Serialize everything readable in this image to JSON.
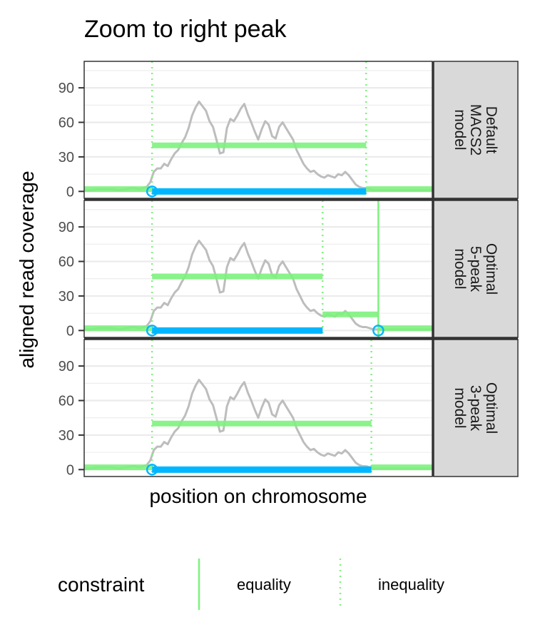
{
  "chart_data": {
    "type": "line",
    "title": "Zoom to right peak",
    "xlabel": "position on chromosome",
    "ylabel": "aligned read coverage",
    "x_ticks_shown": false,
    "x_range": [
      0,
      100
    ],
    "ylim": [
      -6,
      113
    ],
    "y_ticks": [
      0,
      30,
      60,
      90
    ],
    "grid": true,
    "legend_placement": "bottom",
    "colors": {
      "coverage": "#bdbdbd",
      "segment": "#7ef27e",
      "peak": "#00b7ff",
      "strip_bg": "#d9d9d9",
      "panel_border": "#333333",
      "grid": "#ebebeb"
    },
    "coverage": {
      "x": [
        0,
        2,
        4,
        6,
        8,
        10,
        12,
        14,
        16,
        18,
        19,
        20,
        21,
        22,
        23,
        24,
        25,
        26,
        27,
        28,
        29,
        30,
        31,
        32,
        33,
        34,
        35,
        36,
        37,
        38,
        39,
        40,
        41,
        42,
        43,
        44,
        45,
        46,
        47,
        48,
        49,
        50,
        51,
        52,
        53,
        54,
        55,
        56,
        57,
        58,
        59,
        60,
        61,
        62,
        63,
        64,
        65,
        66,
        67,
        68,
        69,
        70,
        71,
        72,
        73,
        74,
        75,
        76,
        77,
        78,
        79,
        80,
        81,
        82,
        83,
        84,
        85,
        86,
        87,
        88,
        89,
        90,
        92,
        94,
        96,
        98,
        100
      ],
      "y": [
        1,
        1,
        2,
        2,
        2,
        1,
        2,
        3,
        2,
        4,
        8,
        17,
        20,
        20,
        24,
        22,
        28,
        33,
        36,
        42,
        47,
        55,
        66,
        73,
        78,
        74,
        70,
        61,
        56,
        45,
        33,
        34,
        55,
        63,
        61,
        66,
        72,
        76,
        67,
        60,
        52,
        45,
        54,
        61,
        58,
        48,
        46,
        56,
        60,
        55,
        50,
        45,
        36,
        30,
        24,
        20,
        17,
        18,
        15,
        13,
        12,
        14,
        13,
        12,
        15,
        14,
        17,
        14,
        10,
        6,
        4,
        3,
        3,
        2,
        1,
        1,
        1,
        1,
        1,
        1,
        1,
        1,
        1,
        1,
        1,
        1,
        1
      ]
    },
    "legend": {
      "title": "constraint",
      "entries": [
        {
          "label": "equality",
          "linetype": "solid"
        },
        {
          "label": "inequality",
          "linetype": "dotted"
        }
      ]
    },
    "panels": [
      {
        "strip": [
          "Default",
          "MACS2",
          "model"
        ],
        "segments": [
          {
            "x0": 0,
            "x1": 19.5,
            "mean": 2
          },
          {
            "x0": 19.5,
            "x1": 81,
            "mean": 40
          },
          {
            "x0": 81,
            "x1": 100,
            "mean": 2
          }
        ],
        "changes": [
          {
            "x": 19.5,
            "constraint": "inequality"
          },
          {
            "x": 81,
            "constraint": "inequality"
          }
        ],
        "peaks": [
          {
            "x0": 19.5,
            "x1": 81
          }
        ],
        "start_markers": [
          19.5
        ]
      },
      {
        "strip": [
          "Optimal",
          "5-peak",
          "model"
        ],
        "segments": [
          {
            "x0": 0,
            "x1": 19.5,
            "mean": 2
          },
          {
            "x0": 19.5,
            "x1": 68.5,
            "mean": 47
          },
          {
            "x0": 68.5,
            "x1": 84.5,
            "mean": 14
          },
          {
            "x0": 84.5,
            "x1": 100,
            "mean": 2
          }
        ],
        "changes": [
          {
            "x": 19.5,
            "constraint": "inequality"
          },
          {
            "x": 68.5,
            "constraint": "inequality"
          },
          {
            "x": 84.5,
            "constraint": "equality"
          }
        ],
        "peaks": [
          {
            "x0": 19.5,
            "x1": 68.5
          }
        ],
        "start_markers": [
          19.5,
          84.5
        ]
      },
      {
        "strip": [
          "Optimal",
          "3-peak",
          "model"
        ],
        "segments": [
          {
            "x0": 0,
            "x1": 19.5,
            "mean": 2
          },
          {
            "x0": 19.5,
            "x1": 82.5,
            "mean": 40
          },
          {
            "x0": 82.5,
            "x1": 100,
            "mean": 2
          }
        ],
        "changes": [
          {
            "x": 19.5,
            "constraint": "inequality"
          },
          {
            "x": 82.5,
            "constraint": "inequality"
          }
        ],
        "peaks": [
          {
            "x0": 19.5,
            "x1": 82.5
          }
        ],
        "start_markers": [
          19.5
        ]
      }
    ]
  }
}
